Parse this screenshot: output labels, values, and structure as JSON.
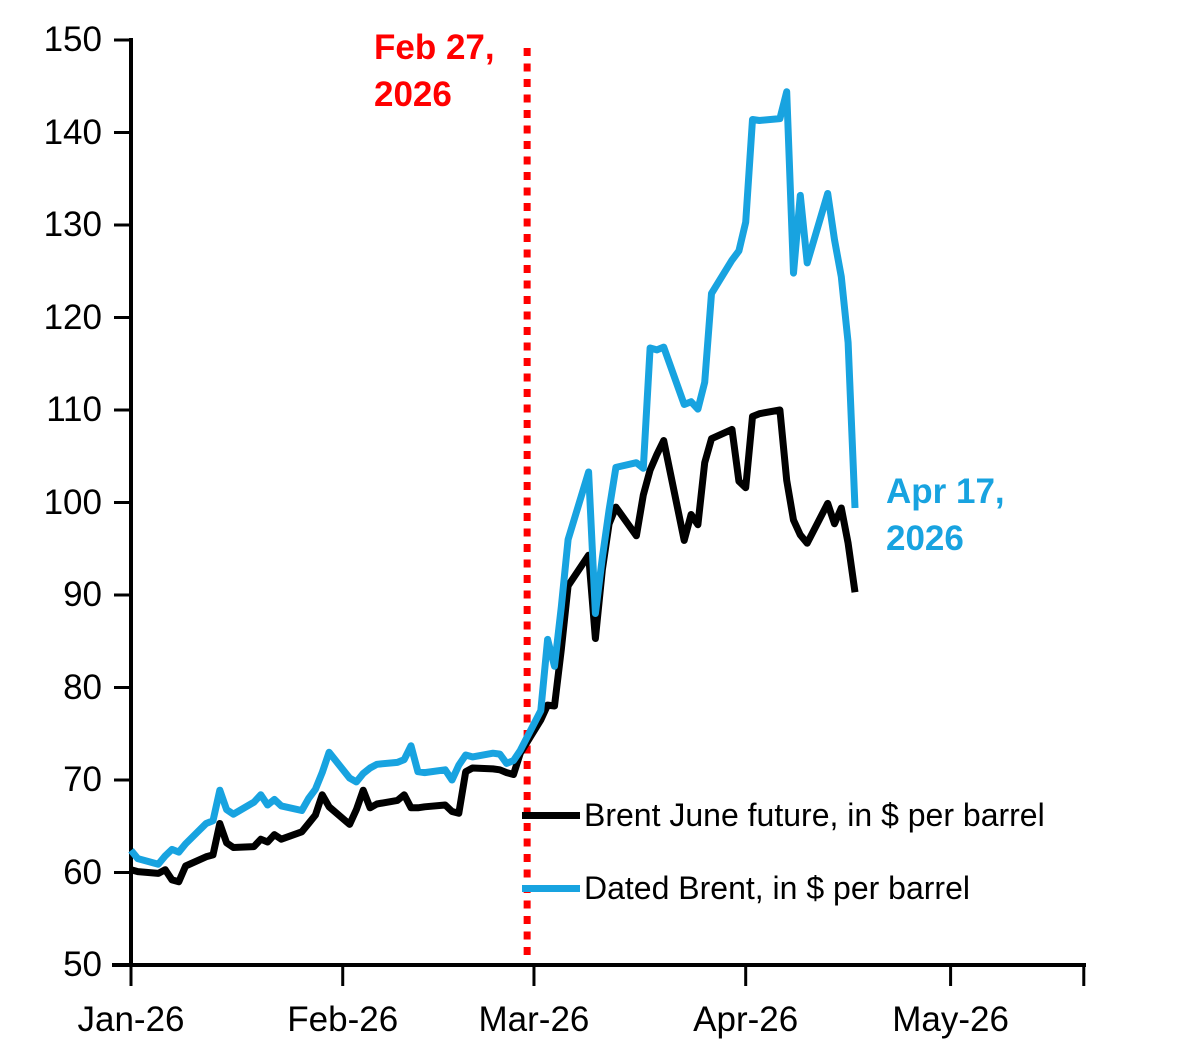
{
  "chart_data": {
    "type": "line",
    "title": "",
    "x_axis": {
      "unit": "days-since-2026-01-01",
      "ticks": [
        {
          "label": "Jan-26",
          "day": 0
        },
        {
          "label": "Feb-26",
          "day": 31
        },
        {
          "label": "Mar-26",
          "day": 59
        },
        {
          "label": "Apr-26",
          "day": 90
        },
        {
          "label": "May-26",
          "day": 120
        }
      ],
      "axis_end_day": 139.5,
      "grid": false
    },
    "y_axis": {
      "min": 50,
      "max": 150,
      "step": 10,
      "tick_labels": [
        "50",
        "60",
        "70",
        "80",
        "90",
        "100",
        "110",
        "120",
        "130",
        "140",
        "150"
      ]
    },
    "series": [
      {
        "name": "Brent June future, in $ per barrel",
        "color": "#000000",
        "points": [
          [
            0,
            60.3
          ],
          [
            1,
            60.1
          ],
          [
            4,
            59.9
          ],
          [
            5,
            60.3
          ],
          [
            6,
            59.2
          ],
          [
            7,
            59.0
          ],
          [
            8,
            60.7
          ],
          [
            11,
            61.7
          ],
          [
            12,
            61.9
          ],
          [
            13,
            65.3
          ],
          [
            14,
            63.2
          ],
          [
            15,
            62.7
          ],
          [
            18,
            62.8
          ],
          [
            19,
            63.6
          ],
          [
            20,
            63.3
          ],
          [
            21,
            64.1
          ],
          [
            22,
            63.6
          ],
          [
            25,
            64.4
          ],
          [
            26,
            65.3
          ],
          [
            27,
            66.2
          ],
          [
            28,
            68.4
          ],
          [
            29,
            67.1
          ],
          [
            32,
            65.2
          ],
          [
            33,
            66.8
          ],
          [
            34,
            68.9
          ],
          [
            35,
            67.0
          ],
          [
            36,
            67.4
          ],
          [
            39,
            67.8
          ],
          [
            40,
            68.4
          ],
          [
            41,
            67.0
          ],
          [
            42,
            67.0
          ],
          [
            43,
            67.1
          ],
          [
            46,
            67.3
          ],
          [
            47,
            66.6
          ],
          [
            48,
            66.4
          ],
          [
            49,
            70.9
          ],
          [
            50,
            71.3
          ],
          [
            53,
            71.2
          ],
          [
            54,
            71.1
          ],
          [
            55,
            70.8
          ],
          [
            56,
            70.6
          ],
          [
            57,
            72.9
          ],
          [
            60,
            76.5
          ],
          [
            61,
            78.1
          ],
          [
            62,
            78.0
          ],
          [
            63,
            84.1
          ],
          [
            64,
            91.0
          ],
          [
            67,
            94.3
          ],
          [
            68,
            85.3
          ],
          [
            69,
            92.7
          ],
          [
            70,
            97.7
          ],
          [
            71,
            99.5
          ],
          [
            74,
            96.4
          ],
          [
            75,
            100.8
          ],
          [
            76,
            103.5
          ],
          [
            77,
            105.2
          ],
          [
            78,
            106.7
          ],
          [
            81,
            95.9
          ],
          [
            82,
            98.7
          ],
          [
            83,
            97.6
          ],
          [
            84,
            104.3
          ],
          [
            85,
            106.9
          ],
          [
            88,
            107.9
          ],
          [
            89,
            102.3
          ],
          [
            90,
            101.6
          ],
          [
            91,
            109.3
          ],
          [
            92,
            109.6
          ],
          [
            95,
            110.0
          ],
          [
            96,
            102.4
          ],
          [
            97,
            98.1
          ],
          [
            98,
            96.5
          ],
          [
            99,
            95.6
          ],
          [
            102,
            99.9
          ],
          [
            103,
            97.7
          ],
          [
            104,
            99.4
          ],
          [
            105,
            95.6
          ],
          [
            106,
            90.3
          ]
        ]
      },
      {
        "name": "Dated Brent, in $ per barrel",
        "color": "#18A3E0",
        "points": [
          [
            0,
            62.4
          ],
          [
            1,
            61.5
          ],
          [
            4,
            60.9
          ],
          [
            5,
            61.8
          ],
          [
            6,
            62.5
          ],
          [
            7,
            62.2
          ],
          [
            8,
            63.1
          ],
          [
            11,
            65.3
          ],
          [
            12,
            65.6
          ],
          [
            13,
            68.9
          ],
          [
            14,
            66.8
          ],
          [
            15,
            66.3
          ],
          [
            18,
            67.6
          ],
          [
            19,
            68.4
          ],
          [
            20,
            67.3
          ],
          [
            21,
            67.9
          ],
          [
            22,
            67.2
          ],
          [
            25,
            66.7
          ],
          [
            26,
            68.0
          ],
          [
            27,
            69.0
          ],
          [
            28,
            70.8
          ],
          [
            29,
            73.0
          ],
          [
            32,
            70.2
          ],
          [
            33,
            69.8
          ],
          [
            34,
            70.7
          ],
          [
            35,
            71.3
          ],
          [
            36,
            71.7
          ],
          [
            39,
            71.9
          ],
          [
            40,
            72.2
          ],
          [
            41,
            73.7
          ],
          [
            42,
            70.9
          ],
          [
            43,
            70.8
          ],
          [
            46,
            71.1
          ],
          [
            47,
            70.0
          ],
          [
            48,
            71.6
          ],
          [
            49,
            72.7
          ],
          [
            50,
            72.5
          ],
          [
            53,
            72.9
          ],
          [
            54,
            72.8
          ],
          [
            55,
            71.8
          ],
          [
            56,
            72.1
          ],
          [
            57,
            73.2
          ],
          [
            60,
            77.5
          ],
          [
            61,
            85.2
          ],
          [
            62,
            82.3
          ],
          [
            63,
            88.7
          ],
          [
            64,
            96.0
          ],
          [
            67,
            103.3
          ],
          [
            68,
            88.0
          ],
          [
            69,
            94.0
          ],
          [
            70,
            99.2
          ],
          [
            71,
            103.8
          ],
          [
            74,
            104.3
          ],
          [
            75,
            103.7
          ],
          [
            76,
            116.7
          ],
          [
            77,
            116.5
          ],
          [
            78,
            116.8
          ],
          [
            81,
            110.6
          ],
          [
            82,
            110.9
          ],
          [
            83,
            110.1
          ],
          [
            84,
            113.0
          ],
          [
            85,
            122.6
          ],
          [
            88,
            126.2
          ],
          [
            89,
            127.2
          ],
          [
            90,
            130.3
          ],
          [
            91,
            141.4
          ],
          [
            92,
            141.3
          ],
          [
            95,
            141.5
          ],
          [
            96,
            144.4
          ],
          [
            97,
            124.8
          ],
          [
            98,
            133.2
          ],
          [
            99,
            125.9
          ],
          [
            102,
            133.4
          ],
          [
            103,
            128.4
          ],
          [
            104,
            124.4
          ],
          [
            105,
            117.3
          ],
          [
            106,
            99.4
          ]
        ]
      }
    ],
    "event_line": {
      "day": 58,
      "color": "#FF0000",
      "style": "dotted"
    },
    "legend_position": "inside-lower-right"
  },
  "annotations": {
    "event": {
      "text": "Feb 27,\n2026",
      "color": "#FF0000"
    },
    "end": {
      "text": "Apr 17,\n2026",
      "color": "#18A3E0"
    }
  },
  "legend": {
    "items": [
      {
        "label": "Brent June future, in $ per barrel",
        "color": "#000000"
      },
      {
        "label": "Dated Brent, in $ per barrel",
        "color": "#18A3E0"
      }
    ]
  }
}
